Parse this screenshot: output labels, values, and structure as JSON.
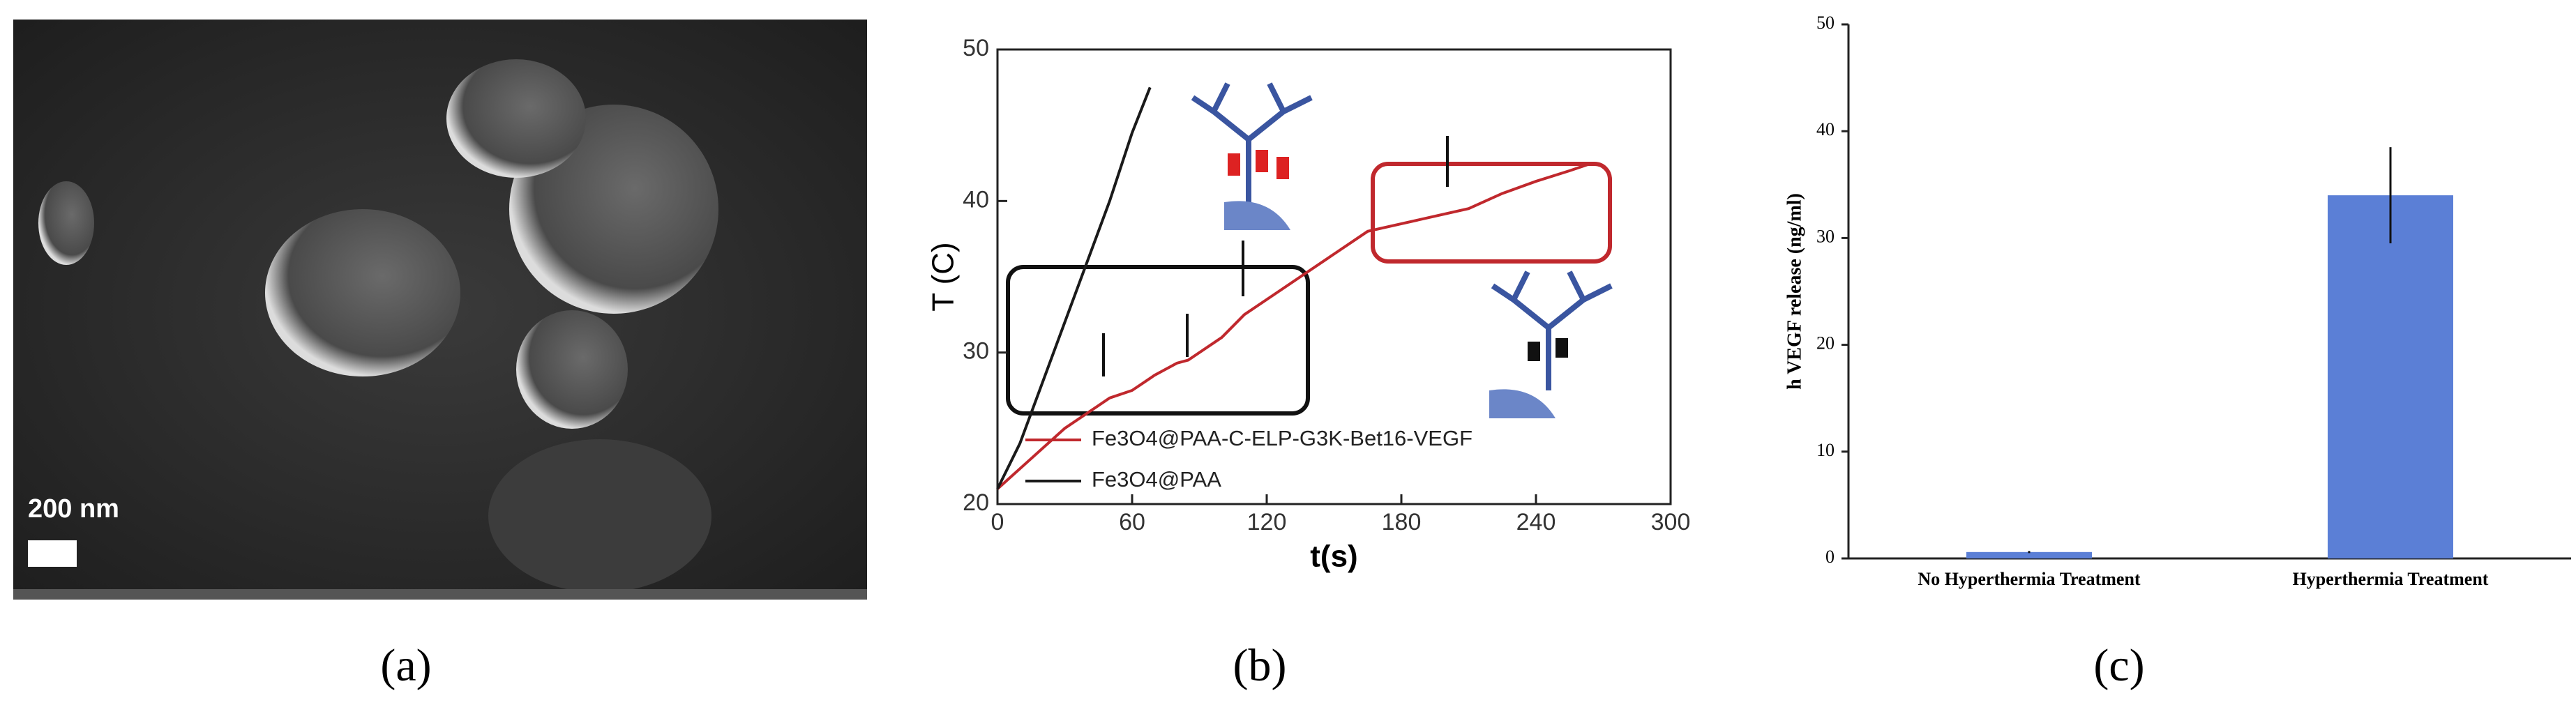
{
  "image_panel": {
    "scale_bar_label": "200 nm",
    "caption": "(a)"
  },
  "chart_data": [
    {
      "type": "line",
      "caption": "(b)",
      "xlabel": "t(s)",
      "ylabel": "T (C)",
      "xlim": [
        0,
        300
      ],
      "xticks": [
        0,
        60,
        120,
        180,
        240,
        300
      ],
      "ylim": [
        20,
        50
      ],
      "yticks": [
        20,
        30,
        40,
        50
      ],
      "legend": "lower right",
      "series": [
        {
          "name": "Fe3O4@PAA-C-ELP-G3K-Bet16-VEGF",
          "color": "#c0282d",
          "x": [
            0,
            15,
            30,
            45,
            50,
            60,
            70,
            80,
            85,
            100,
            110,
            120,
            135,
            150,
            165,
            180,
            195,
            210,
            225,
            240,
            255,
            265
          ],
          "values": [
            21,
            23,
            25,
            26.5,
            27,
            27.5,
            28.5,
            29.3,
            29.5,
            31,
            32.5,
            33.5,
            35,
            36.5,
            38,
            38.5,
            39,
            39.5,
            40.5,
            41.3,
            42,
            42.5
          ]
        },
        {
          "name": "Fe3O4@PAA",
          "color": "#1a1a1a",
          "x": [
            0,
            10,
            20,
            30,
            40,
            50,
            60,
            68
          ],
          "values": [
            21,
            24,
            28,
            32,
            36,
            40,
            44.5,
            47.5
          ]
        }
      ]
    },
    {
      "type": "bar",
      "caption": "(c)",
      "ylabel": "h VEGF release (ng/ml)",
      "categories": [
        "No Hyperthermia Treatment",
        "Hyperthermia Treatment"
      ],
      "values": [
        0.6,
        34
      ],
      "errors": [
        0.1,
        4.5
      ],
      "color": "#5b7fd6",
      "ylim": [
        0,
        50
      ],
      "yticks": [
        0,
        10,
        20,
        30,
        40,
        50
      ]
    }
  ]
}
